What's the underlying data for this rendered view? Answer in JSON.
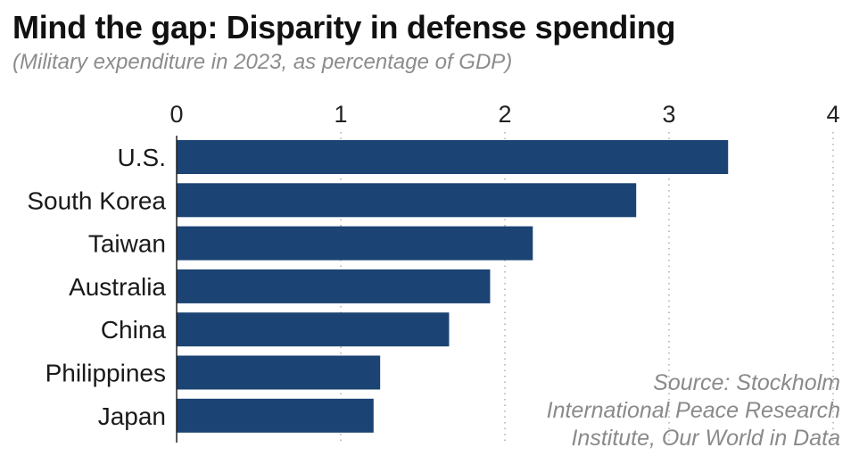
{
  "chart_data": {
    "type": "bar",
    "orientation": "horizontal",
    "title": "Mind the gap: Disparity in defense spending",
    "subtitle": "(Military expenditure in 2023, as percentage of GDP)",
    "xlabel": "",
    "ylabel": "",
    "xlim": [
      0,
      4
    ],
    "x_ticks": [
      0,
      1,
      2,
      3,
      4
    ],
    "x_tick_labels": [
      "0",
      "1",
      "2",
      "3",
      "4"
    ],
    "x_axis_position": "top",
    "grid": "vertical dotted",
    "categories": [
      "U.S.",
      "South Korea",
      "Taiwan",
      "Australia",
      "China",
      "Philippines",
      "Japan"
    ],
    "values": [
      3.36,
      2.8,
      2.17,
      1.91,
      1.66,
      1.24,
      1.2
    ],
    "bar_color": "#1b4373",
    "source_lines": [
      "Source: Stockholm",
      "International Peace Research",
      "Institute, Our World in Data"
    ]
  }
}
